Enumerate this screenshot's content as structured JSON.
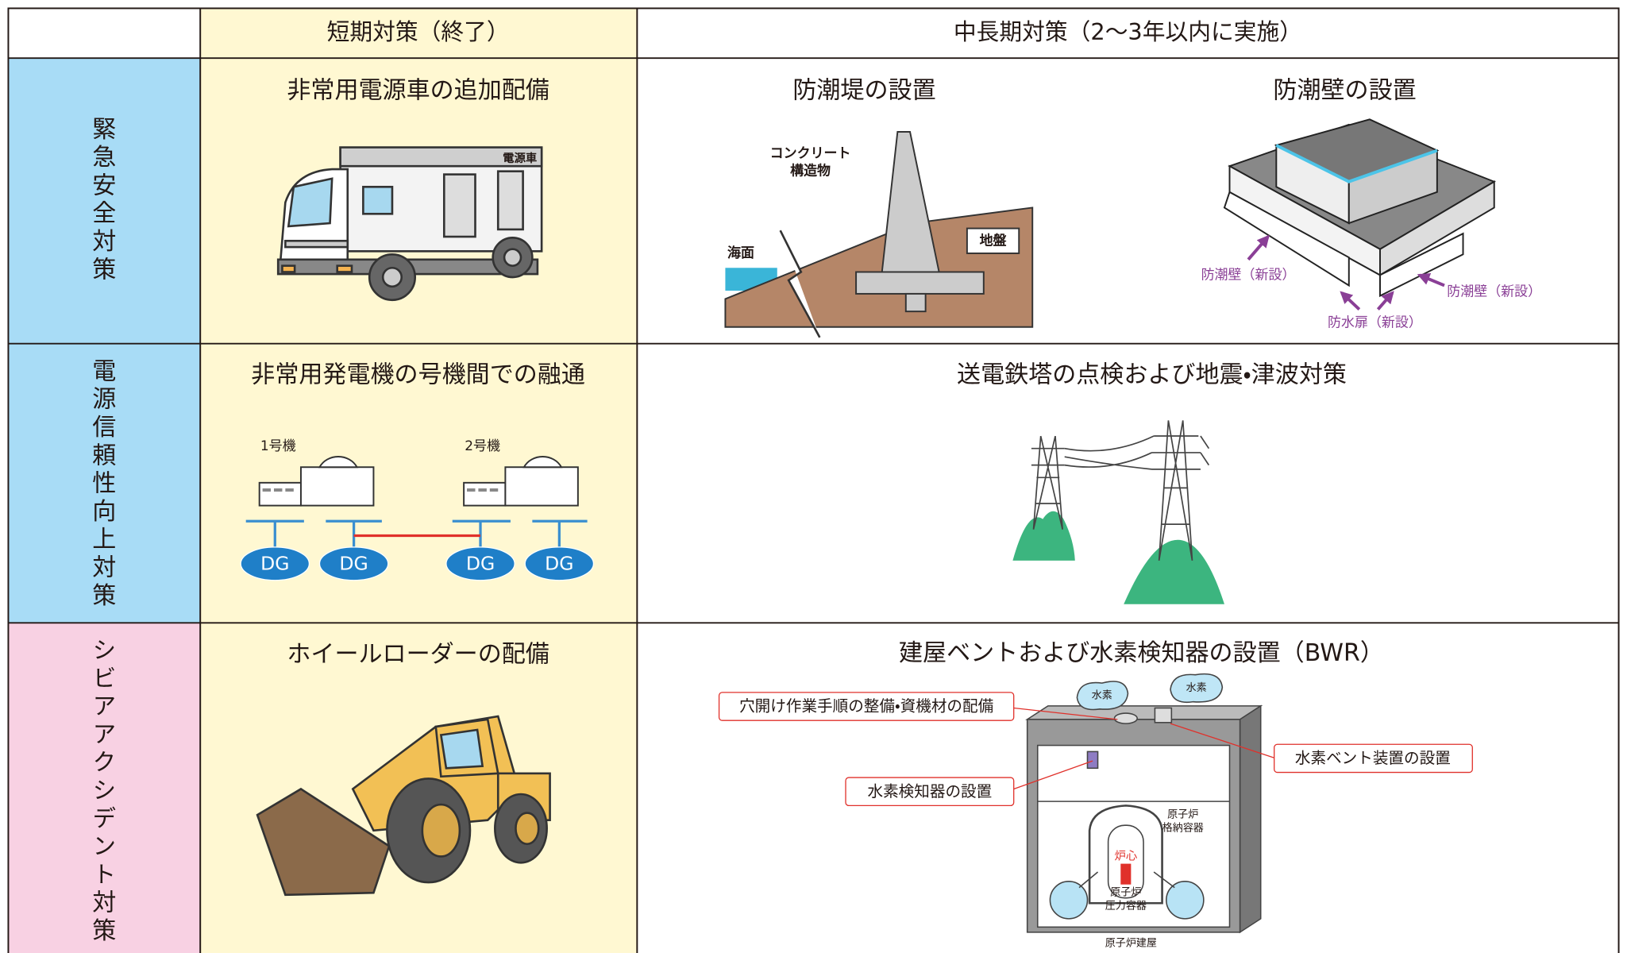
{
  "header": {
    "short_term": "短期対策（終了）",
    "mid_long_term": "中長期対策（2～3年以内に実施）"
  },
  "rows": [
    {
      "label": "緊急安全対策",
      "short": {
        "title": "非常用電源車の追加配備",
        "truck_label": "電源車"
      },
      "mid": [
        {
          "title": "防潮堤の設置",
          "labels": [
            "コンクリート",
            "構造物",
            "海面",
            "地盤"
          ]
        },
        {
          "title": "防潮壁の設置",
          "labels": [
            "防潮壁（新設）",
            "防潮壁（新設）",
            "防水扉（新設）"
          ]
        }
      ]
    },
    {
      "label": "電源信頼性向上対策",
      "short": {
        "title": "非常用発電機の号機間での融通",
        "units": [
          "1号機",
          "2号機"
        ],
        "dg": [
          "DG",
          "DG",
          "DG",
          "DG"
        ]
      },
      "mid": [
        {
          "title": "送電鉄塔の点検および地震・津波対策"
        }
      ]
    },
    {
      "label": "シビアアクシデント対策",
      "short": {
        "title": "ホイールローダーの配備"
      },
      "mid": [
        {
          "title": "建屋ベントおよび水素検知器の設置（BWR）",
          "callouts": [
            "穴開け作業手順の整備・資機材の配備",
            "水素ベント装置の設置",
            "水素検知器の設置"
          ],
          "labels": [
            "水素",
            "水素",
            "原子炉",
            "格納容器",
            "炉心",
            "原子炉",
            "圧力容器",
            "原子炉建屋"
          ]
        }
      ]
    }
  ]
}
